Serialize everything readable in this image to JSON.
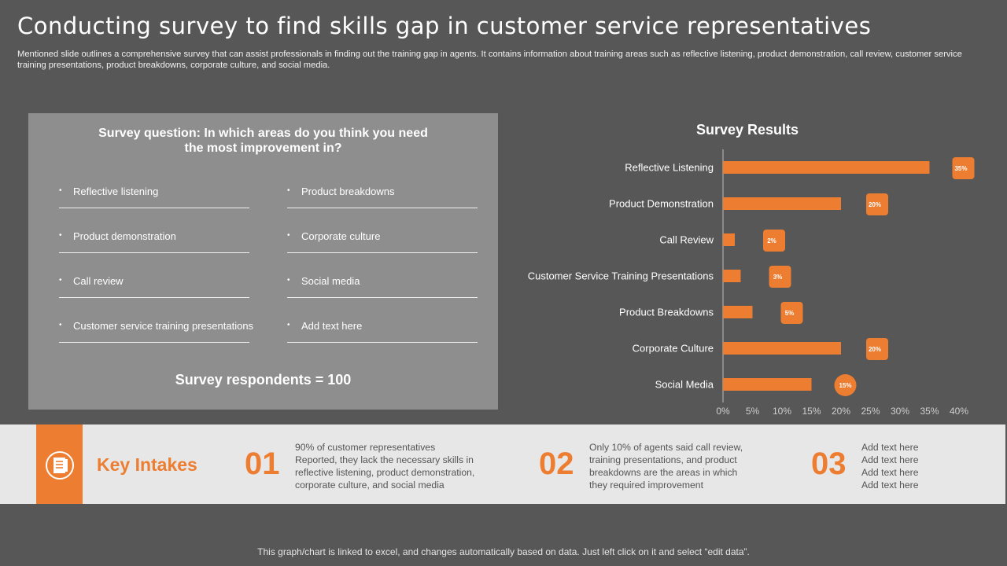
{
  "slide": {
    "title": "Conducting survey to find skills gap in customer service representatives",
    "subtitle": "Mentioned slide outlines a comprehensive survey that can assist professionals in finding out the training gap in agents. It contains information about training areas such as reflective listening, product demonstration, call review, customer service training presentations, product breakdowns, corporate culture, and social media.",
    "footer": "This graph/chart is linked to excel, and changes automatically based on data. Just left click on it and select “edit data”."
  },
  "survey": {
    "question": "Survey question: In which areas do you think you need the most improvement in?",
    "options_left": [
      "Reflective  listening",
      "Product demonstration",
      "Call review",
      "Customer  service  training presentations"
    ],
    "options_right": [
      "Product breakdowns",
      "Corporate  culture",
      "Social media",
      "Add text here"
    ],
    "bullet": "•",
    "respondents": "Survey respondents = 100"
  },
  "chart_data": {
    "type": "bar",
    "orientation": "horizontal",
    "title": "Survey Results",
    "categories": [
      "Reflective Listening",
      "Product Demonstration",
      "Call Review",
      "Customer Service Training Presentations",
      "Product Breakdowns",
      "Corporate Culture",
      "Social Media"
    ],
    "values": [
      35,
      20,
      2,
      3,
      5,
      20,
      15
    ],
    "data_labels": [
      "35%",
      "20%",
      "2%",
      "3%",
      "5%",
      "20%",
      "15%"
    ],
    "xlim": [
      0,
      40
    ],
    "x_ticks": [
      "0%",
      "5%",
      "10%",
      "15%",
      "20%",
      "25%",
      "30%",
      "35%",
      "40%"
    ],
    "grid": false,
    "bar_color": "#ed7d31",
    "label_bg": "#ed7d31"
  },
  "intakes": {
    "heading": "Key Intakes",
    "icon": "document-list-icon",
    "accent": "#ed7d31",
    "points": [
      {
        "number": "01",
        "lines": [
          "90% of customer representatives",
          "Reported,  they lack the necessary skills in",
          "reflective  listening,  product demonstration,",
          "corporate  culture,  and social media"
        ]
      },
      {
        "number": "02",
        "lines": [
          "Only 10% of agents said call review,",
          "training presentations,  and  product",
          "breakdowns  are  the  areas  in which",
          "they required  improvement"
        ]
      },
      {
        "number": "03",
        "lines": [
          "Add text here",
          "Add text here",
          "Add text here",
          "Add text here"
        ]
      }
    ]
  }
}
